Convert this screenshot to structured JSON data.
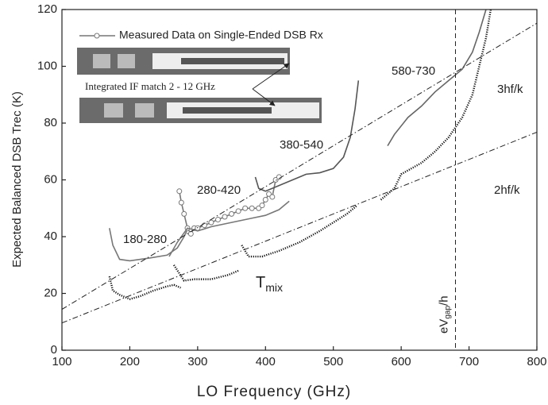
{
  "chart_data": {
    "type": "line",
    "xlabel": "LO Frequency (GHz)",
    "ylabel": "Expected Balanced DSB Trec (K)",
    "xlim": [
      100,
      800
    ],
    "xticks": [
      100,
      200,
      300,
      400,
      500,
      600,
      700,
      800
    ],
    "ylim": [
      0,
      120
    ],
    "yticks": [
      0,
      20,
      40,
      60,
      80,
      100,
      120
    ],
    "legend": "upper left",
    "inset_caption": "Integrated IF match 2 - 12 GHz",
    "series": [
      {
        "name": "Measured Data on Single-Ended DSB Rx",
        "color": "#777777",
        "style": "line-circle",
        "x": [
          273,
          276,
          280,
          285,
          290,
          295,
          300,
          310,
          320,
          330,
          340,
          350,
          360,
          370,
          380,
          390,
          395,
          400,
          405,
          410,
          415,
          420
        ],
        "values": [
          56,
          52,
          48,
          43,
          41,
          43,
          43,
          44,
          45,
          46,
          47,
          48,
          49,
          50,
          50,
          50,
          51,
          53,
          55,
          54,
          60,
          61
        ]
      },
      {
        "name": "180-280",
        "color": "#777777",
        "style": "solid",
        "x": [
          170,
          175,
          185,
          200,
          230,
          255,
          270,
          280,
          284
        ],
        "values": [
          43,
          37,
          32,
          31.5,
          32.5,
          33.5,
          36,
          40,
          42
        ]
      },
      {
        "name": "280-420",
        "color": "#777777",
        "style": "solid",
        "x": [
          258,
          270,
          285,
          300,
          320,
          350,
          380,
          400,
          420,
          435
        ],
        "values": [
          33,
          38,
          43,
          42,
          43.5,
          45,
          46.5,
          47.5,
          49.5,
          52.5
        ]
      },
      {
        "name": "380-540",
        "color": "#555555",
        "style": "solid",
        "x": [
          385,
          390,
          400,
          420,
          440,
          460,
          480,
          500,
          515,
          525,
          532,
          537
        ],
        "values": [
          61,
          57,
          56,
          58,
          60,
          62,
          62.5,
          64,
          68,
          75,
          85,
          95
        ]
      },
      {
        "name": "580-730",
        "color": "#666666",
        "style": "solid",
        "x": [
          580,
          590,
          610,
          630,
          650,
          670,
          690,
          705,
          715,
          725
        ],
        "values": [
          72,
          76,
          82,
          86,
          91,
          95,
          99,
          105,
          112,
          120
        ]
      },
      {
        "color": "#111111",
        "style": "dotted",
        "x": [
          170,
          175,
          185,
          200,
          215,
          235,
          255,
          265,
          275,
          null,
          265,
          280,
          295,
          320,
          345,
          360,
          null,
          365,
          375,
          395,
          420,
          450,
          480,
          500,
          520,
          535,
          null,
          570,
          590,
          600,
          630,
          650,
          670,
          690,
          705,
          715,
          725,
          732
        ],
        "values": [
          26,
          21,
          19.5,
          18,
          19,
          21,
          22.5,
          23,
          22,
          null,
          30,
          24.5,
          25,
          25,
          26.5,
          28,
          null,
          37,
          33,
          33,
          35,
          38,
          42,
          45,
          48,
          51,
          null,
          53,
          57,
          62,
          66,
          70,
          75,
          82,
          90,
          100,
          110,
          120
        ]
      },
      {
        "name": "3hf/k",
        "color": "#222222",
        "style": "dashdot",
        "x": [
          100,
          800
        ],
        "values": [
          14.4,
          115.2
        ]
      },
      {
        "name": "2hf/k",
        "color": "#222222",
        "style": "dashdot",
        "x": [
          100,
          800
        ],
        "values": [
          9.6,
          76.8
        ]
      }
    ],
    "tmix_label": {
      "text": "T",
      "sub": "mix"
    },
    "vline": {
      "x": 680,
      "text": "eV",
      "sub": "gap",
      "suffix": "/h"
    }
  }
}
